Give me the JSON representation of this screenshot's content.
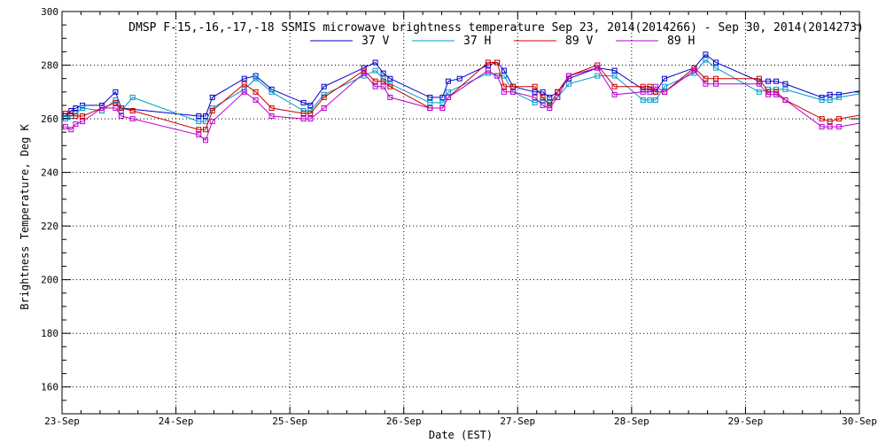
{
  "chart_data": {
    "type": "line",
    "title": "DMSP F-15,-16,-17,-18 SSMIS microwave brightness temperature Sep 23, 2014(2014266) - Sep 30, 2014(2014273)",
    "xlabel": "Date (EST)",
    "ylabel": "Brightness Temperature, Deg K",
    "xlim": [
      0,
      7
    ],
    "ylim": [
      150,
      300
    ],
    "x_tick_labels": [
      "23-Sep",
      "24-Sep",
      "25-Sep",
      "26-Sep",
      "27-Sep",
      "28-Sep",
      "29-Sep",
      "30-Sep"
    ],
    "y_ticks": [
      160,
      180,
      200,
      220,
      240,
      260,
      280,
      300
    ],
    "grid": true,
    "legend_position": "top-center",
    "series": [
      {
        "name": "37 V",
        "color": "#0000cc",
        "x": [
          0.03,
          0.08,
          0.12,
          0.18,
          0.35,
          0.47,
          0.52,
          1.2,
          1.26,
          1.32,
          1.6,
          1.7,
          1.84,
          2.12,
          2.18,
          2.3,
          2.65,
          2.75,
          2.82,
          2.88,
          3.23,
          3.34,
          3.39,
          3.49,
          3.74,
          3.82,
          3.88,
          3.96,
          4.15,
          4.22,
          4.28,
          4.35,
          4.45,
          4.7,
          4.85,
          5.1,
          5.16,
          5.21,
          5.29,
          5.55,
          5.65,
          5.74,
          6.12,
          6.2,
          6.27,
          6.35,
          6.67,
          6.74,
          6.82
        ],
        "values": [
          261,
          263,
          264,
          265,
          265,
          270,
          264,
          261,
          261,
          268,
          275,
          276,
          271,
          266,
          265,
          272,
          279,
          281,
          277,
          275,
          268,
          268,
          274,
          275,
          280,
          281,
          278,
          272,
          270,
          270,
          268,
          270,
          275,
          279,
          278,
          271,
          271,
          270,
          275,
          279,
          284,
          281,
          274,
          274,
          274,
          273,
          268,
          269,
          269
        ]
      },
      {
        "name": "37 H",
        "color": "#0099cc",
        "x": [
          0.03,
          0.08,
          0.12,
          0.18,
          0.35,
          0.47,
          0.52,
          0.62,
          1.2,
          1.26,
          1.32,
          1.6,
          1.7,
          1.84,
          2.12,
          2.18,
          2.3,
          2.65,
          2.75,
          2.82,
          2.88,
          3.23,
          3.34,
          3.39,
          3.74,
          3.82,
          3.88,
          3.96,
          4.15,
          4.22,
          4.28,
          4.35,
          4.45,
          4.7,
          4.85,
          5.1,
          5.16,
          5.21,
          5.29,
          5.55,
          5.65,
          5.74,
          6.12,
          6.2,
          6.27,
          6.35,
          6.67,
          6.74,
          6.82
        ],
        "values": [
          260,
          261,
          262,
          264,
          263,
          267,
          263,
          268,
          259,
          259,
          264,
          271,
          275,
          270,
          263,
          263,
          269,
          276,
          278,
          275,
          273,
          266,
          266,
          270,
          277,
          276,
          276,
          270,
          266,
          267,
          266,
          268,
          273,
          276,
          276,
          267,
          267,
          267,
          272,
          277,
          282,
          279,
          270,
          271,
          271,
          271,
          267,
          267,
          268
        ]
      },
      {
        "name": "89 V",
        "color": "#cc0000",
        "x": [
          0.03,
          0.08,
          0.12,
          0.18,
          0.35,
          0.47,
          0.52,
          0.62,
          1.2,
          1.26,
          1.32,
          1.6,
          1.7,
          1.84,
          2.12,
          2.18,
          2.3,
          2.65,
          2.75,
          2.82,
          2.88,
          3.23,
          3.34,
          3.39,
          3.74,
          3.82,
          3.88,
          3.96,
          4.15,
          4.22,
          4.28,
          4.35,
          4.45,
          4.7,
          4.85,
          5.1,
          5.16,
          5.21,
          5.29,
          5.55,
          5.65,
          5.74,
          6.12,
          6.2,
          6.27,
          6.35,
          6.67,
          6.74,
          6.82
        ],
        "values": [
          262,
          262,
          261,
          261,
          264,
          266,
          264,
          263,
          256,
          256,
          263,
          273,
          270,
          264,
          262,
          262,
          268,
          278,
          274,
          274,
          272,
          264,
          264,
          268,
          281,
          281,
          272,
          272,
          272,
          268,
          265,
          270,
          276,
          280,
          272,
          272,
          272,
          270,
          270,
          279,
          275,
          275,
          275,
          270,
          270,
          267,
          260,
          259,
          260
        ]
      },
      {
        "name": "89 H",
        "color": "#bb00cc",
        "x": [
          0.03,
          0.08,
          0.12,
          0.18,
          0.35,
          0.47,
          0.52,
          0.62,
          1.2,
          1.26,
          1.32,
          1.6,
          1.7,
          1.84,
          2.12,
          2.18,
          2.3,
          2.65,
          2.75,
          2.82,
          2.88,
          3.23,
          3.34,
          3.39,
          3.74,
          3.82,
          3.88,
          3.96,
          4.15,
          4.22,
          4.28,
          4.35,
          4.45,
          4.7,
          4.85,
          5.1,
          5.16,
          5.21,
          5.29,
          5.55,
          5.65,
          5.74,
          6.12,
          6.2,
          6.27,
          6.35,
          6.67,
          6.74,
          6.82
        ],
        "values": [
          257,
          256,
          258,
          259,
          264,
          264,
          261,
          260,
          254,
          252,
          259,
          270,
          267,
          261,
          260,
          260,
          264,
          277,
          272,
          272,
          268,
          264,
          264,
          268,
          278,
          276,
          270,
          270,
          268,
          265,
          264,
          268,
          276,
          279,
          269,
          270,
          270,
          272,
          270,
          278,
          273,
          273,
          273,
          269,
          269,
          267,
          257,
          257,
          257
        ]
      }
    ]
  }
}
